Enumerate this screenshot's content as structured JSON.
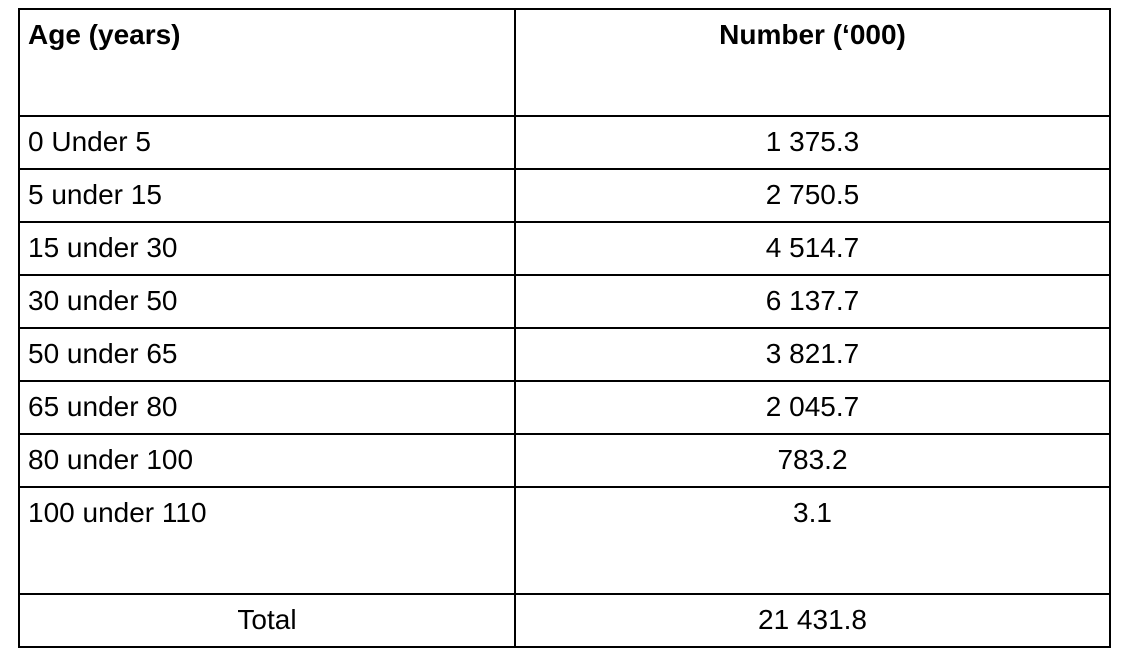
{
  "table": {
    "columns": {
      "age": "Age (years)",
      "number": "Number (‘000)"
    },
    "rows": [
      {
        "age": "0 Under 5",
        "number": "1 375.3"
      },
      {
        "age": "5 under 15",
        "number": "2 750.5"
      },
      {
        "age": "15 under 30",
        "number": "4 514.7"
      },
      {
        "age": "30 under 50",
        "number": "6 137.7"
      },
      {
        "age": "50 under 65",
        "number": "3 821.7"
      },
      {
        "age": "65 under 80",
        "number": "2 045.7"
      },
      {
        "age": "80 under 100",
        "number": "783.2"
      },
      {
        "age": "100 under 110",
        "number": "3.1"
      }
    ],
    "total": {
      "label": "Total",
      "number": "21 431.8"
    }
  },
  "colors": {
    "border": "#000000",
    "background": "#ffffff",
    "text": "#000000"
  }
}
